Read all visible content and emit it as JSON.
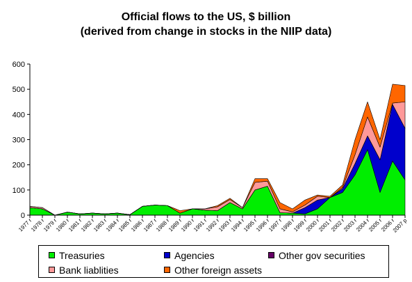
{
  "chart_data": {
    "type": "area",
    "stacked": true,
    "title": "Official flows to the US, $ billion\n(derived from change in stocks in the NIIP data)",
    "title_lines": [
      "Official flows to the US, $ billion",
      "(derived from change in stocks in the NIIP data)"
    ],
    "ylim": [
      0,
      600
    ],
    "yticks": [
      0,
      100,
      200,
      300,
      400,
      500,
      600
    ],
    "x": [
      "1977 r",
      "1978 r",
      "1979 r",
      "1980 r",
      "1981 r",
      "1982 r",
      "1983 r",
      "1984 r",
      "1985 r",
      "1986 r",
      "1987 r",
      "1988 r",
      "1989 r",
      "1990 r",
      "1991 r",
      "1992 r",
      "1993 r",
      "1994 r",
      "1995 r",
      "1996 r",
      "1997 r",
      "1998 r",
      "1999 r",
      "2000 r",
      "2001 r",
      "2002 r",
      "2003 r",
      "2004 r",
      "2005 r",
      "2006 r",
      "2007 p"
    ],
    "legend_position": "bottom",
    "grid": false,
    "series": [
      {
        "name": "Treasuries",
        "color": "#00ee00",
        "values": [
          30,
          25,
          0,
          12,
          5,
          8,
          5,
          8,
          2,
          35,
          40,
          38,
          8,
          25,
          20,
          18,
          50,
          25,
          100,
          115,
          10,
          8,
          5,
          25,
          70,
          90,
          160,
          260,
          90,
          215,
          140
        ]
      },
      {
        "name": "Agencies",
        "color": "#0000cc",
        "values": [
          0,
          0,
          0,
          0,
          0,
          0,
          0,
          0,
          0,
          0,
          0,
          0,
          0,
          0,
          0,
          0,
          0,
          0,
          0,
          0,
          0,
          0,
          25,
          35,
          0,
          15,
          45,
          55,
          130,
          225,
          205
        ]
      },
      {
        "name": "Other gov securities",
        "color": "#660066",
        "values": [
          0,
          0,
          0,
          0,
          0,
          0,
          0,
          0,
          0,
          0,
          0,
          0,
          0,
          0,
          0,
          0,
          0,
          0,
          0,
          0,
          0,
          0,
          0,
          0,
          0,
          0,
          0,
          0,
          0,
          0,
          0
        ]
      },
      {
        "name": "Bank liablities",
        "color": "#ff9999",
        "values": [
          5,
          5,
          0,
          0,
          0,
          0,
          0,
          0,
          0,
          0,
          0,
          0,
          0,
          0,
          5,
          15,
          12,
          5,
          30,
          20,
          15,
          5,
          10,
          15,
          0,
          5,
          35,
          75,
          50,
          5,
          105
        ]
      },
      {
        "name": "Other foreign assets",
        "color": "#ff6600",
        "values": [
          0,
          0,
          0,
          0,
          0,
          0,
          0,
          0,
          0,
          0,
          0,
          0,
          10,
          0,
          0,
          5,
          5,
          0,
          15,
          10,
          25,
          12,
          20,
          5,
          5,
          10,
          60,
          60,
          30,
          75,
          65
        ]
      }
    ]
  }
}
